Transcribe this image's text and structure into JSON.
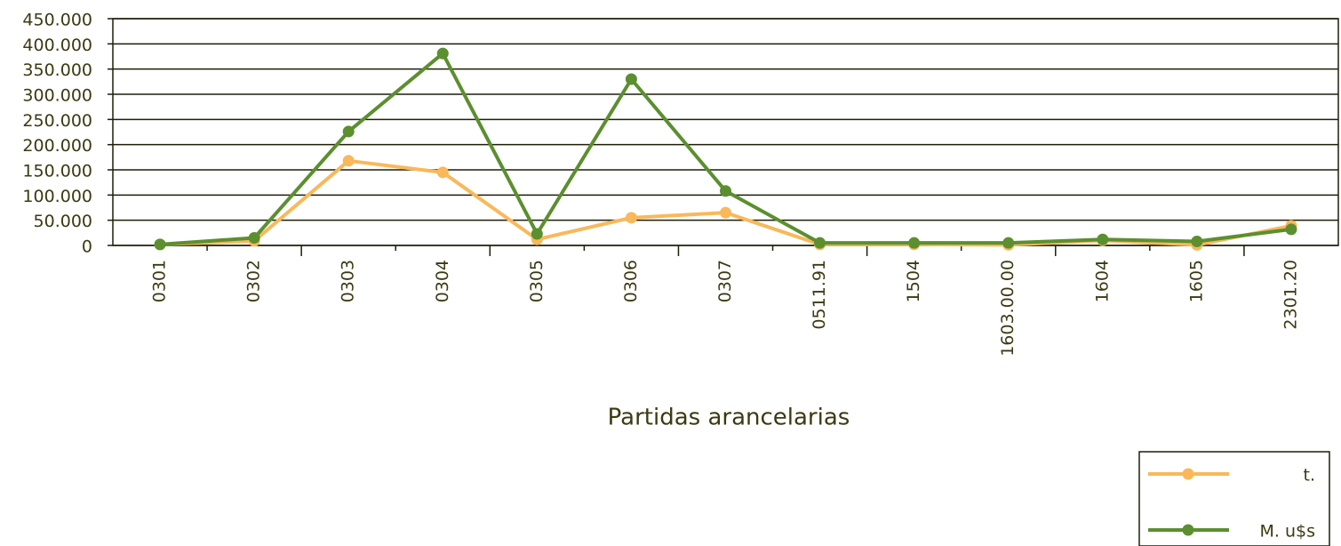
{
  "chart_data": {
    "type": "line",
    "x_label": "Partidas arancelarias",
    "categories": [
      "0301",
      "0302",
      "0303",
      "0304",
      "0305",
      "0306",
      "0307",
      "0511.91",
      "1504",
      "1603.00.00",
      "1604",
      "1605",
      "2301.20"
    ],
    "series": [
      {
        "name": "t.",
        "color": "#f9b85a",
        "values": [
          2000,
          9000,
          168000,
          145000,
          12000,
          55000,
          65000,
          2000,
          2000,
          1000,
          10000,
          1000,
          39000
        ]
      },
      {
        "name": "M. u$s",
        "color": "#5b8f2f",
        "values": [
          2000,
          15000,
          226000,
          381000,
          23000,
          330000,
          108000,
          5000,
          5000,
          5000,
          12000,
          8000,
          32000
        ]
      }
    ],
    "ylim": [
      0,
      450000
    ],
    "yticks": [
      0,
      {
        "value": 50000,
        "label": "50.000"
      },
      {
        "value": 100000,
        "label": "100.000"
      },
      {
        "value": 150000,
        "label": "150.000"
      },
      {
        "value": 200000,
        "label": "200.000"
      },
      {
        "value": 250000,
        "label": "250.000"
      },
      {
        "value": 300000,
        "label": "300.000"
      },
      {
        "value": 350000,
        "label": "350.000"
      },
      {
        "value": 400000,
        "label": "400.000"
      },
      {
        "value": 450000,
        "label": "450.000"
      }
    ],
    "grid": true,
    "legend": "bottom-right"
  }
}
